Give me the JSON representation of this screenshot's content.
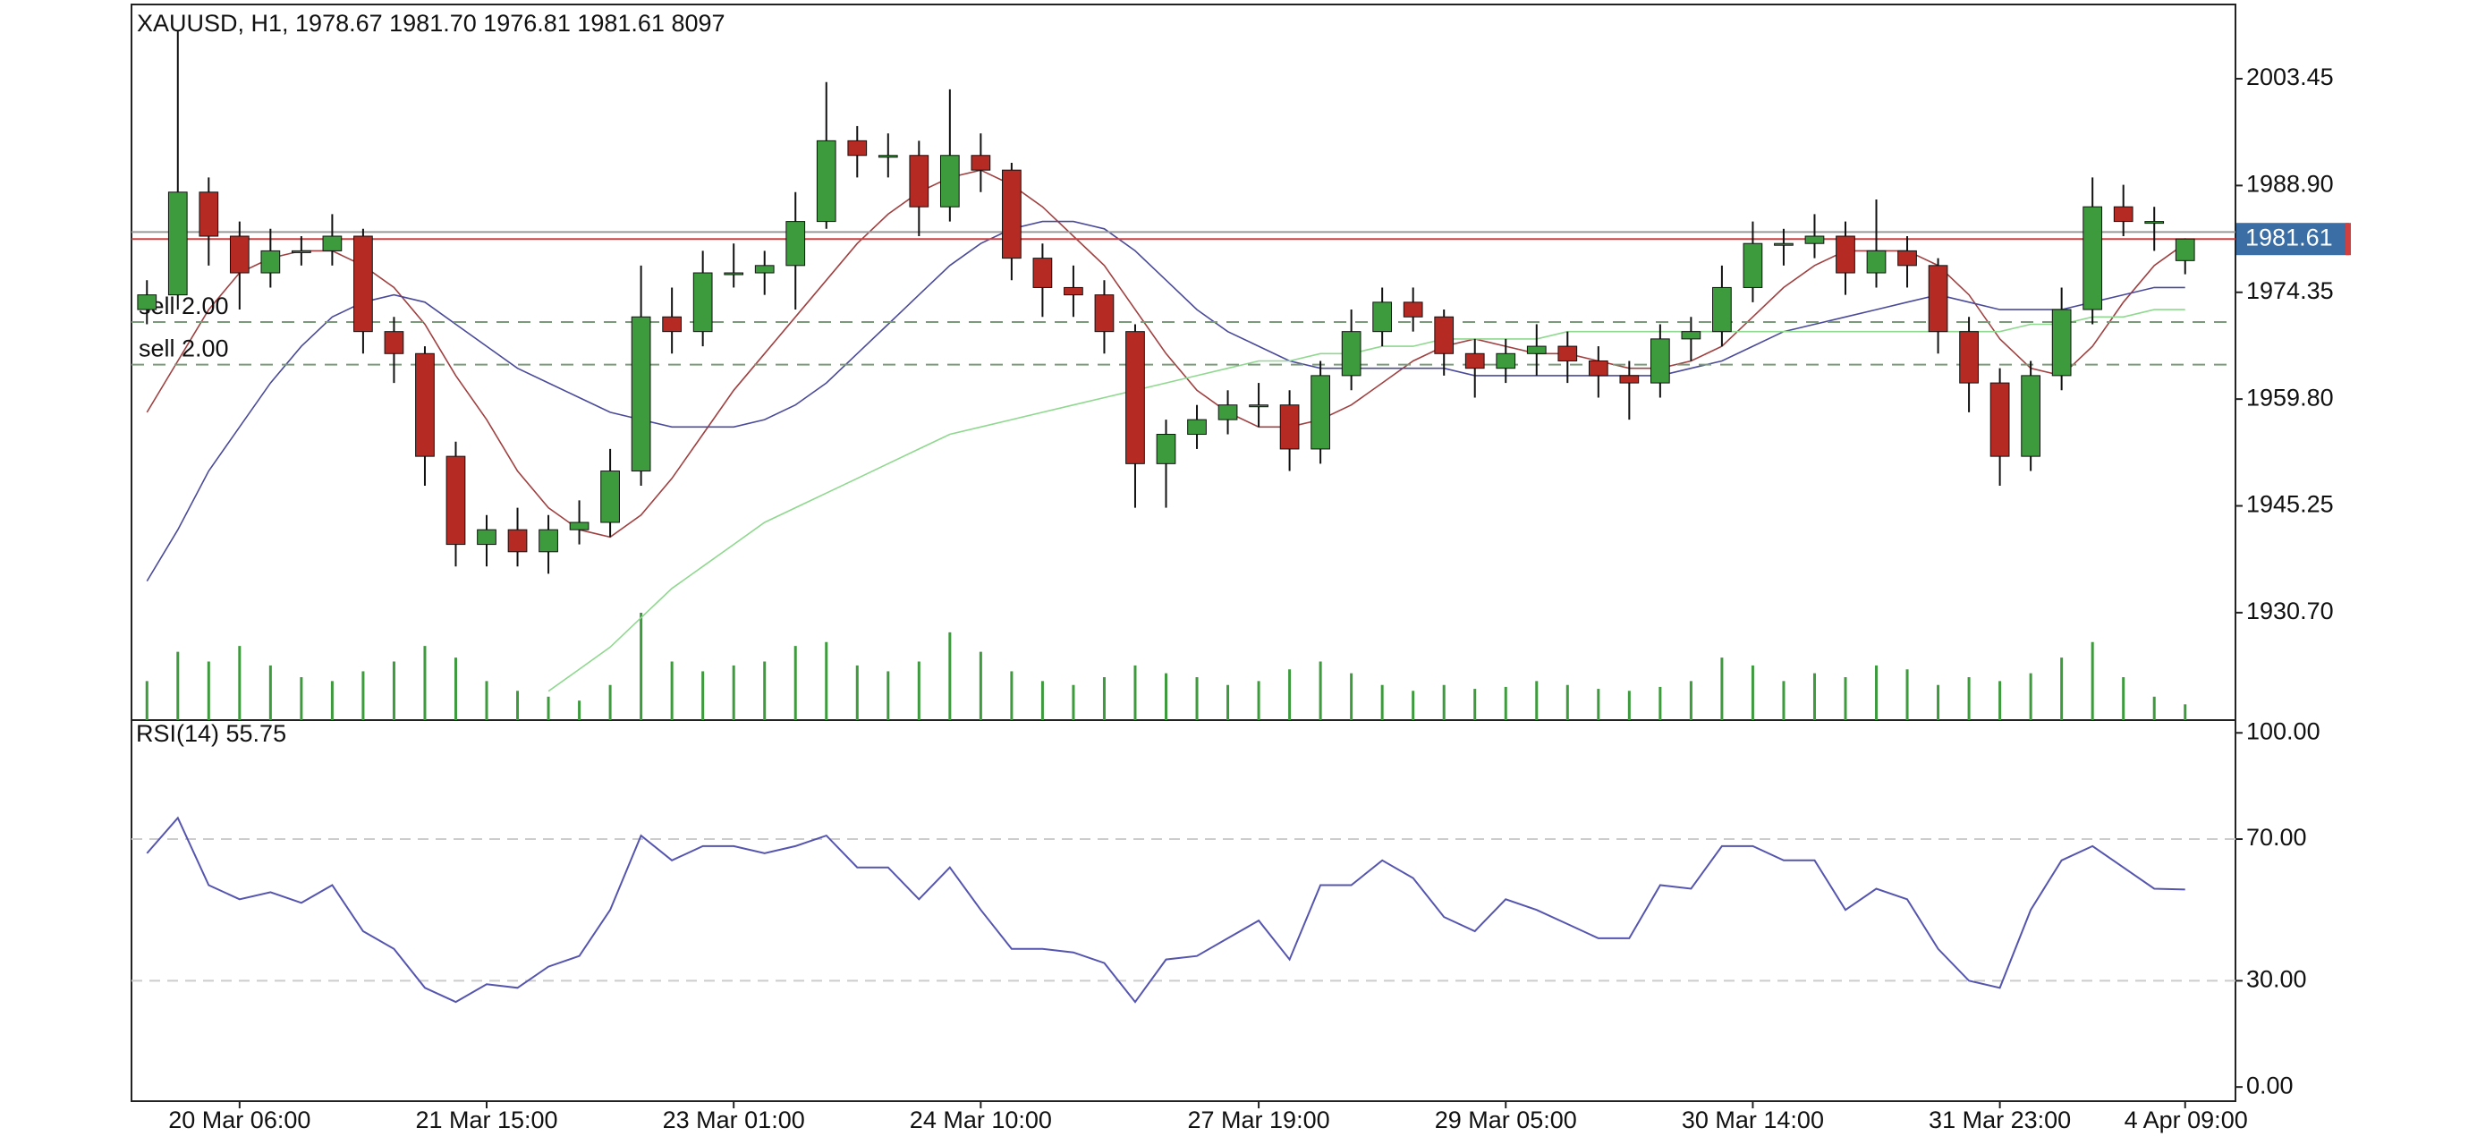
{
  "chart_data": [
    {
      "type": "candlestick",
      "title": "XAUUSD, H1, 1978.67 1981.70 1976.81 1981.61 8097",
      "open": [
        1972,
        1974,
        1988,
        1982,
        1977,
        1980,
        1980,
        1982,
        1969,
        1966,
        1952,
        1940,
        1942,
        1939,
        1942,
        1943,
        1950,
        1971,
        1969,
        1977,
        1977,
        1978,
        1984,
        1995,
        1993,
        1993,
        1986,
        1993,
        1991,
        1979,
        1975,
        1974,
        1969,
        1951,
        1955,
        1957,
        1959,
        1959,
        1953,
        1963,
        1969,
        1973,
        1971,
        1966,
        1964,
        1966,
        1967,
        1965,
        1963,
        1962,
        1968,
        1969,
        1975,
        1981,
        1981,
        1982,
        1977,
        1980,
        1978,
        1969,
        1962,
        1952,
        1963,
        1972,
        1986,
        1984,
        1978.67
      ],
      "high": [
        1976,
        2010,
        1990,
        1984,
        1983,
        1982,
        1985,
        1983,
        1971,
        1967,
        1954,
        1944,
        1945,
        1944,
        1946,
        1953,
        1978,
        1975,
        1980,
        1981,
        1980,
        1988,
        2003,
        1997,
        1996,
        1995,
        2002,
        1996,
        1992,
        1981,
        1978,
        1976,
        1970,
        1957,
        1959,
        1961,
        1962,
        1961,
        1965,
        1972,
        1975,
        1975,
        1972,
        1968,
        1968,
        1970,
        1969,
        1967,
        1965,
        1970,
        1971,
        1978,
        1984,
        1983,
        1985,
        1984,
        1987,
        1982,
        1979,
        1971,
        1964,
        1965,
        1975,
        1990,
        1989,
        1986,
        1981.7
      ],
      "low": [
        1970,
        1972,
        1978,
        1972,
        1975,
        1978,
        1978,
        1966,
        1962,
        1948,
        1937,
        1937,
        1937,
        1936,
        1940,
        1941,
        1948,
        1966,
        1967,
        1975,
        1974,
        1972,
        1983,
        1990,
        1990,
        1982,
        1984,
        1988,
        1976,
        1971,
        1971,
        1966,
        1945,
        1945,
        1953,
        1955,
        1956,
        1950,
        1951,
        1961,
        1967,
        1969,
        1963,
        1960,
        1962,
        1963,
        1962,
        1960,
        1957,
        1960,
        1965,
        1967,
        1973,
        1978,
        1979,
        1974,
        1975,
        1975,
        1966,
        1958,
        1948,
        1950,
        1961,
        1970,
        1982,
        1980,
        1976.81
      ],
      "close": [
        1974,
        1988,
        1982,
        1977,
        1980,
        1980,
        1982,
        1969,
        1966,
        1952,
        1940,
        1942,
        1939,
        1942,
        1943,
        1950,
        1971,
        1969,
        1977,
        1977,
        1978,
        1984,
        1995,
        1993,
        1993,
        1986,
        1993,
        1991,
        1979,
        1975,
        1974,
        1969,
        1951,
        1955,
        1957,
        1959,
        1959,
        1953,
        1963,
        1969,
        1973,
        1971,
        1966,
        1964,
        1966,
        1967,
        1965,
        1963,
        1962,
        1968,
        1969,
        1975,
        1981,
        1981,
        1982,
        1977,
        1980,
        1978,
        1969,
        1962,
        1952,
        1963,
        1972,
        1986,
        1984,
        1984,
        1981.61
      ],
      "volume": [
        20000,
        35000,
        30000,
        38000,
        28000,
        22000,
        20000,
        25000,
        30000,
        38000,
        32000,
        20000,
        15000,
        12000,
        10000,
        18000,
        55000,
        30000,
        25000,
        28000,
        30000,
        38000,
        40000,
        28000,
        25000,
        30000,
        45000,
        35000,
        25000,
        20000,
        18000,
        22000,
        28000,
        24000,
        22000,
        18000,
        20000,
        26000,
        30000,
        24000,
        18000,
        15000,
        18000,
        16000,
        17000,
        20000,
        18000,
        16000,
        15000,
        17000,
        20000,
        32000,
        28000,
        20000,
        24000,
        22000,
        28000,
        26000,
        18000,
        22000,
        20000,
        24000,
        32000,
        40000,
        22000,
        12000,
        8097
      ],
      "up_color": "#3d9a3d",
      "down_color": "#b52a22",
      "volume_color": "#3d9a3d",
      "lines": [
        {
          "color": "#a04040",
          "values": [
            1958,
            1965,
            1972,
            1977,
            1979,
            1980,
            1980,
            1978,
            1975,
            1970,
            1963,
            1957,
            1950,
            1945,
            1942,
            1941,
            1944,
            1949,
            1955,
            1961,
            1966,
            1971,
            1976,
            1981,
            1985,
            1988,
            1990,
            1991,
            1989,
            1986,
            1982,
            1978,
            1972,
            1966,
            1961,
            1958,
            1956,
            1956,
            1957,
            1959,
            1962,
            1965,
            1967,
            1968,
            1967,
            1966,
            1966,
            1965,
            1964,
            1964,
            1965,
            1967,
            1971,
            1975,
            1978,
            1980,
            1980,
            1980,
            1978,
            1974,
            1968,
            1964,
            1963,
            1967,
            1973,
            1978,
            1981
          ]
        },
        {
          "color": "#4a4a9a",
          "values": [
            1935,
            1942,
            1950,
            1956,
            1962,
            1967,
            1971,
            1973,
            1974,
            1973,
            1970,
            1967,
            1964,
            1962,
            1960,
            1958,
            1957,
            1956,
            1956,
            1956,
            1957,
            1959,
            1962,
            1966,
            1970,
            1974,
            1978,
            1981,
            1983,
            1984,
            1984,
            1983,
            1980,
            1976,
            1972,
            1969,
            1967,
            1965,
            1964,
            1964,
            1964,
            1964,
            1964,
            1963,
            1963,
            1963,
            1963,
            1963,
            1963,
            1963,
            1964,
            1965,
            1967,
            1969,
            1970,
            1971,
            1972,
            1973,
            1974,
            1973,
            1972,
            1972,
            1972,
            1973,
            1974,
            1975,
            1975
          ]
        },
        {
          "color": "#8fd88f",
          "values": [
            null,
            null,
            null,
            null,
            null,
            null,
            null,
            null,
            null,
            null,
            null,
            null,
            null,
            1920,
            1923,
            1926,
            1930,
            1934,
            1937,
            1940,
            1943,
            1945,
            1947,
            1949,
            1951,
            1953,
            1955,
            1956,
            1957,
            1958,
            1959,
            1960,
            1961,
            1962,
            1963,
            1964,
            1965,
            1965,
            1966,
            1966,
            1967,
            1967,
            1968,
            1968,
            1968,
            1968,
            1969,
            1969,
            1969,
            1969,
            1969,
            1969,
            1969,
            1969,
            1969,
            1969,
            1969,
            1969,
            1969,
            1969,
            1969,
            1970,
            1970,
            1971,
            1971,
            1972,
            1972
          ]
        }
      ],
      "price_line_color": "#d04040",
      "ask_line": {
        "value": 1982.57,
        "color": "#999999"
      },
      "orders": [
        {
          "label": "sell 2.00",
          "value": 1970.3
        },
        {
          "label": "sell 2.00",
          "value": 1964.5
        }
      ],
      "tag_color": "#3b6ea5",
      "ylim": [
        1916.06,
        2013.57
      ],
      "yticks": [
        2003.45,
        {
          "value": 1988.9,
          "label": "1988.90"
        },
        1974.35,
        {
          "value": 1959.8,
          "label": "1959.80"
        },
        1945.25,
        {
          "value": 1930.7,
          "label": "1930.70"
        }
      ],
      "xticks": [
        {
          "value": 3,
          "label": "20 Mar 06:00"
        },
        {
          "value": 11,
          "label": "21 Mar 15:00"
        },
        {
          "value": 19,
          "label": "23 Mar 01:00"
        },
        {
          "value": 27,
          "label": "24 Mar 10:00"
        },
        {
          "value": 36,
          "label": "27 Mar 19:00"
        },
        {
          "value": 44,
          "label": "29 Mar 05:00"
        },
        {
          "value": 52,
          "label": "30 Mar 14:00"
        },
        {
          "value": 60,
          "label": "31 Mar 23:00"
        },
        {
          "value": 66,
          "label": "4 Apr 09:00"
        }
      ]
    },
    {
      "type": "line",
      "title": "RSI(14) 55.75",
      "color": "#5555b0",
      "values": [
        66,
        76,
        57,
        53,
        55,
        52,
        57,
        44,
        39,
        28,
        24,
        29,
        28,
        34,
        37,
        50,
        71,
        64,
        68,
        68,
        66,
        68,
        71,
        62,
        62,
        53,
        62,
        50,
        39,
        39,
        38,
        35,
        24,
        36,
        37,
        42,
        47,
        36,
        57,
        57,
        64,
        59,
        48,
        44,
        53,
        50,
        46,
        42,
        42,
        57,
        56,
        68,
        68,
        64,
        64,
        50,
        56,
        53,
        39,
        30,
        28,
        50,
        64,
        68,
        62,
        56,
        55.75
      ],
      "levels": [
        70,
        30
      ],
      "ylim": [
        -4,
        103.6
      ],
      "yticks": [
        {
          "value": 100,
          "label": "100.00"
        },
        {
          "value": 70,
          "label": "70.00"
        },
        {
          "value": 30,
          "label": "30.00"
        },
        {
          "value": 0,
          "label": "0.00"
        }
      ]
    }
  ]
}
